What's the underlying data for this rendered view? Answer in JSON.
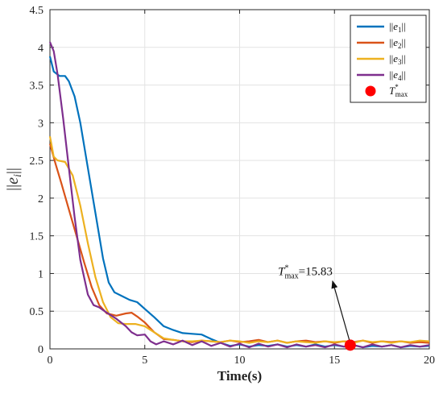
{
  "chart_data": {
    "type": "line",
    "title": "",
    "xlabel": "Time(s)",
    "ylabel": "||e_i||",
    "xlim": [
      0,
      20
    ],
    "ylim": [
      0,
      4.5
    ],
    "xticks": [
      "0",
      "5",
      "10",
      "15",
      "20"
    ],
    "yticks": [
      "0",
      "0.5",
      "1",
      "1.5",
      "2",
      "2.5",
      "3",
      "3.5",
      "4",
      "4.5"
    ],
    "grid": true,
    "legend_position": "top-right",
    "series": [
      {
        "name": "||e1||",
        "color": "#0072BD",
        "x": [
          0,
          0.2,
          0.5,
          0.8,
          1.0,
          1.3,
          1.6,
          2.0,
          2.4,
          2.8,
          3.1,
          3.4,
          3.8,
          4.2,
          4.6,
          5.0,
          5.5,
          6.0,
          6.5,
          7.0,
          7.5,
          8.0,
          8.5,
          9.0,
          9.5,
          10.0,
          10.5,
          11.0,
          11.5,
          12.0,
          12.5,
          13.0,
          13.5,
          14.0,
          14.5,
          15.0,
          15.5,
          16.0,
          16.5,
          17.0,
          17.5,
          18.0,
          18.5,
          19.0,
          19.5,
          20.0
        ],
        "y": [
          3.88,
          3.68,
          3.62,
          3.62,
          3.55,
          3.35,
          3.0,
          2.4,
          1.8,
          1.2,
          0.88,
          0.75,
          0.7,
          0.65,
          0.62,
          0.53,
          0.42,
          0.3,
          0.25,
          0.21,
          0.2,
          0.19,
          0.13,
          0.08,
          0.04,
          0.06,
          0.03,
          0.05,
          0.04,
          0.06,
          0.03,
          0.05,
          0.03,
          0.06,
          0.03,
          0.05,
          0.03,
          0.05,
          0.02,
          0.04,
          0.03,
          0.05,
          0.02,
          0.04,
          0.03,
          0.04
        ]
      },
      {
        "name": "||e2||",
        "color": "#D95319",
        "x": [
          0,
          0.3,
          0.6,
          1.0,
          1.4,
          1.8,
          2.2,
          2.6,
          3.0,
          3.5,
          4.0,
          4.3,
          4.6,
          5.0,
          5.5,
          6.0,
          6.5,
          7.0,
          7.5,
          8.0,
          8.5,
          9.0,
          9.5,
          10.0,
          10.5,
          11.0,
          11.5,
          12.0,
          12.5,
          13.0,
          13.5,
          14.0,
          14.5,
          15.0,
          15.5,
          16.0,
          16.5,
          17.0,
          17.5,
          18.0,
          18.5,
          19.0,
          19.5,
          20.0
        ],
        "y": [
          2.72,
          2.45,
          2.2,
          1.85,
          1.5,
          1.15,
          0.82,
          0.58,
          0.47,
          0.44,
          0.47,
          0.48,
          0.43,
          0.35,
          0.22,
          0.13,
          0.12,
          0.1,
          0.09,
          0.11,
          0.1,
          0.09,
          0.11,
          0.09,
          0.1,
          0.12,
          0.09,
          0.11,
          0.08,
          0.1,
          0.11,
          0.09,
          0.1,
          0.08,
          0.1,
          0.09,
          0.11,
          0.08,
          0.1,
          0.09,
          0.1,
          0.08,
          0.09,
          0.08
        ]
      },
      {
        "name": "||e3||",
        "color": "#EDB120",
        "x": [
          0,
          0.2,
          0.4,
          0.8,
          1.2,
          1.6,
          2.0,
          2.4,
          2.8,
          3.2,
          3.6,
          4.0,
          4.5,
          5.0,
          5.5,
          6.0,
          6.5,
          7.0,
          7.5,
          8.0,
          8.5,
          9.0,
          9.5,
          10.0,
          10.5,
          11.0,
          11.5,
          12.0,
          12.5,
          13.0,
          13.5,
          14.0,
          14.5,
          15.0,
          15.5,
          16.0,
          16.5,
          17.0,
          17.5,
          18.0,
          18.5,
          19.0,
          19.5,
          20.0
        ],
        "y": [
          2.82,
          2.55,
          2.5,
          2.48,
          2.3,
          1.9,
          1.4,
          0.95,
          0.62,
          0.42,
          0.34,
          0.33,
          0.33,
          0.3,
          0.22,
          0.14,
          0.12,
          0.1,
          0.1,
          0.11,
          0.1,
          0.09,
          0.11,
          0.1,
          0.08,
          0.1,
          0.09,
          0.11,
          0.08,
          0.1,
          0.09,
          0.08,
          0.1,
          0.09,
          0.1,
          0.08,
          0.11,
          0.09,
          0.1,
          0.08,
          0.1,
          0.09,
          0.11,
          0.1
        ]
      },
      {
        "name": "||e4||",
        "color": "#7E2F8E",
        "x": [
          0,
          0.2,
          0.4,
          0.7,
          1.0,
          1.3,
          1.6,
          2.0,
          2.3,
          2.6,
          3.0,
          3.5,
          4.0,
          4.3,
          4.6,
          5.0,
          5.3,
          5.6,
          6.0,
          6.5,
          7.0,
          7.5,
          8.0,
          8.5,
          9.0,
          9.5,
          10.0,
          10.5,
          11.0,
          11.5,
          12.0,
          12.5,
          13.0,
          13.5,
          14.0,
          14.5,
          15.0,
          15.5,
          16.0,
          16.5,
          17.0,
          17.5,
          18.0,
          18.5,
          19.0,
          19.5,
          20.0
        ],
        "y": [
          4.07,
          3.95,
          3.65,
          3.05,
          2.4,
          1.75,
          1.18,
          0.72,
          0.58,
          0.55,
          0.48,
          0.4,
          0.3,
          0.22,
          0.18,
          0.19,
          0.1,
          0.06,
          0.1,
          0.06,
          0.11,
          0.05,
          0.1,
          0.04,
          0.08,
          0.03,
          0.07,
          0.02,
          0.07,
          0.03,
          0.06,
          0.02,
          0.06,
          0.03,
          0.05,
          0.02,
          0.06,
          0.03,
          0.05,
          0.02,
          0.06,
          0.03,
          0.05,
          0.02,
          0.05,
          0.03,
          0.05
        ]
      }
    ],
    "marker": {
      "name": "T*max",
      "x": 15.83,
      "y": 0.05,
      "color": "#FF0000"
    },
    "annotation": {
      "text": "=15.83",
      "label_prefix": "T",
      "sup": "*",
      "sub": "max",
      "text_x": 13.8,
      "text_y": 1.03,
      "arrow_from_x": 14.9,
      "arrow_from_y": 0.9,
      "arrow_to_x": 15.78,
      "arrow_to_y": 0.12
    },
    "legend_labels": {
      "e1": {
        "pre": "||",
        "base": "e",
        "sub": "1",
        "post": "||"
      },
      "e2": {
        "pre": "||",
        "base": "e",
        "sub": "2",
        "post": "||"
      },
      "e3": {
        "pre": "||",
        "base": "e",
        "sub": "3",
        "post": "||"
      },
      "e4": {
        "pre": "||",
        "base": "e",
        "sub": "4",
        "post": "||"
      },
      "tmax": {
        "base": "T",
        "sup": "*",
        "sub": "max"
      }
    }
  }
}
